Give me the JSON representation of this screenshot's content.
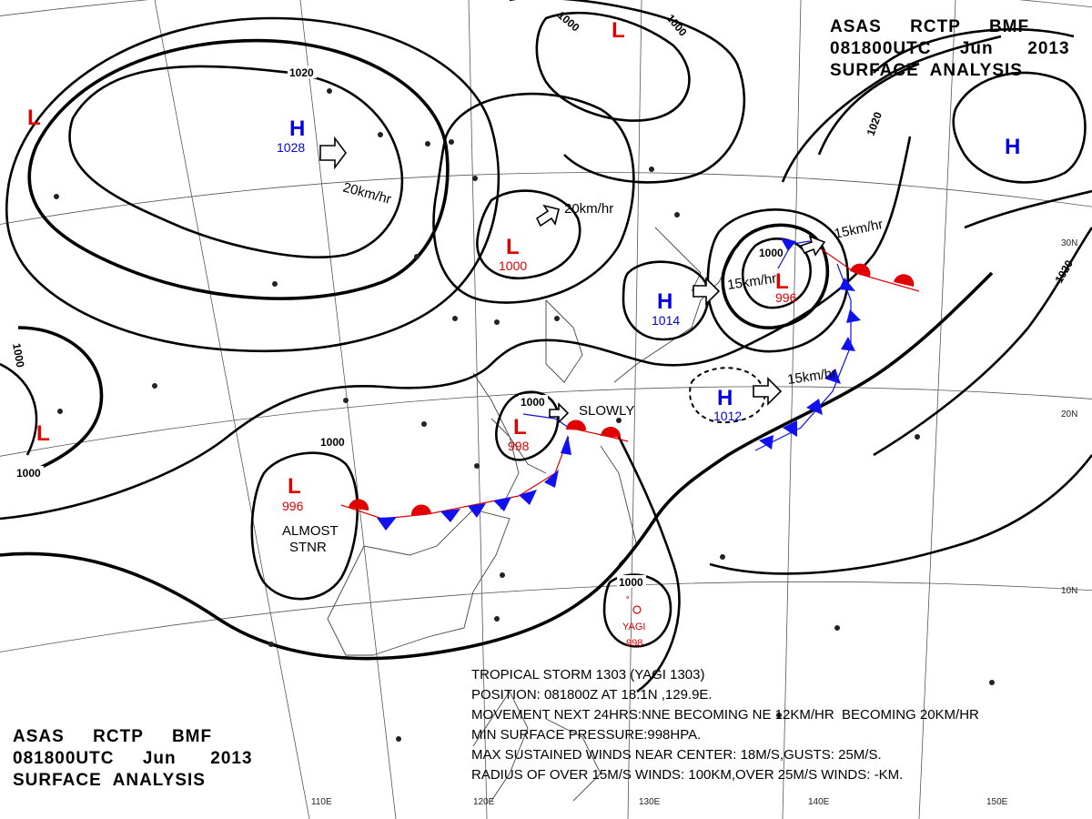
{
  "header_top": {
    "line1": "ASAS     RCTP     BMF",
    "line2": "081800UTC     Jun      2013",
    "line3": "SURFACE  ANALYSIS"
  },
  "header_bottom": {
    "line1": "ASAS     RCTP     BMF",
    "line2": "081800UTC     Jun      2013",
    "line3": "SURFACE  ANALYSIS"
  },
  "storm_info": {
    "line1": "TROPICAL STORM 1303 (YAGI 1303)",
    "line2": "POSITION: 081800Z AT 18.1N ,129.9E.",
    "line3": "MOVEMENT NEXT 24HRS:NNE BECOMING NE 12KM/HR  BECOMING 20KM/HR",
    "line4": "MIN SURFACE PRESSURE:998HPA.",
    "line5": "MAX SUSTAINED WINDS NEAR CENTER: 18M/S,GUSTS: 25M/S.",
    "line6": "RADIUS OF OVER 15M/S WINDS: 100KM,OVER 25M/S WINDS: -KM."
  },
  "pressure_systems": [
    {
      "type": "H",
      "value": "1028"
    },
    {
      "type": "L",
      "value": "1000"
    },
    {
      "type": "H",
      "value": "1014"
    },
    {
      "type": "L",
      "value": "996"
    },
    {
      "type": "H",
      "value": "1012"
    },
    {
      "type": "L",
      "value": "998"
    },
    {
      "type": "L",
      "value": "996"
    },
    {
      "type": "H",
      "value": ""
    },
    {
      "type": "L",
      "value": ""
    },
    {
      "type": "L",
      "value": ""
    },
    {
      "type": "L",
      "value": ""
    }
  ],
  "isobar_labels": [
    "1020",
    "1000",
    "1000",
    "1000",
    "1000",
    "1000",
    "1000",
    "1000",
    "1020",
    "1020",
    "1000"
  ],
  "movements": {
    "h1028": "20km/hr",
    "l1000": "20km/hr",
    "h1014": "15km/hr",
    "l996ne": "15km/hr",
    "h1012": "15km/hr",
    "l998": "SLOWLY",
    "l996w_line1": "ALMOST",
    "l996w_line2": "STNR"
  },
  "storm_name": "YAGI",
  "storm_pressure": "998",
  "grid_labels": {
    "lon": [
      "110E",
      "120E",
      "130E",
      "140E",
      "150E"
    ],
    "lat": [
      "30N",
      "20N",
      "10N"
    ]
  },
  "colors": {
    "low": "#e00000",
    "high": "#0000e0",
    "warm_front": "#e00000",
    "cold_front": "#1010f0"
  }
}
